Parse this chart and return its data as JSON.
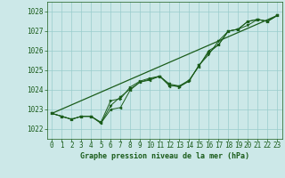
{
  "title": "Graphe pression niveau de la mer (hPa)",
  "background_color": "#cce8e8",
  "grid_color": "#99cccc",
  "line_color": "#1a5c1a",
  "marker_color": "#1a5c1a",
  "xlim": [
    -0.5,
    23.5
  ],
  "ylim": [
    1021.5,
    1028.5
  ],
  "yticks": [
    1022,
    1023,
    1024,
    1025,
    1026,
    1027,
    1028
  ],
  "xticks": [
    0,
    1,
    2,
    3,
    4,
    5,
    6,
    7,
    8,
    9,
    10,
    11,
    12,
    13,
    14,
    15,
    16,
    17,
    18,
    19,
    20,
    21,
    22,
    23
  ],
  "series1_x": [
    0,
    1,
    2,
    3,
    4,
    5,
    6,
    7,
    8,
    9,
    10,
    11,
    12,
    13,
    14,
    15,
    16,
    17,
    18,
    19,
    20,
    21,
    22,
    23
  ],
  "series1_y": [
    1022.8,
    1022.65,
    1022.5,
    1022.65,
    1022.65,
    1022.3,
    1023.2,
    1023.65,
    1024.05,
    1024.4,
    1024.55,
    1024.7,
    1024.3,
    1024.2,
    1024.45,
    1025.25,
    1025.8,
    1026.5,
    1027.0,
    1027.1,
    1027.3,
    1027.6,
    1027.5,
    1027.8
  ],
  "series2_x": [
    0,
    1,
    2,
    3,
    4,
    5,
    6,
    7,
    8,
    9,
    10,
    11,
    12,
    13,
    14,
    15,
    16,
    17,
    18,
    19,
    20,
    21,
    22,
    23
  ],
  "series2_y": [
    1022.8,
    1022.65,
    1022.5,
    1022.65,
    1022.65,
    1022.35,
    1023.45,
    1023.55,
    1024.15,
    1024.45,
    1024.6,
    1024.7,
    1024.25,
    1024.15,
    1024.45,
    1025.25,
    1025.9,
    1026.3,
    1027.0,
    1027.1,
    1027.5,
    1027.6,
    1027.5,
    1027.8
  ],
  "series3_x": [
    0,
    1,
    2,
    3,
    4,
    5,
    6,
    7,
    8,
    9,
    10,
    11,
    12,
    13,
    14,
    15,
    16,
    17,
    18,
    19,
    20,
    21,
    22,
    23
  ],
  "series3_y": [
    1022.8,
    1022.65,
    1022.5,
    1022.65,
    1022.65,
    1022.3,
    1023.0,
    1023.1,
    1024.0,
    1024.4,
    1024.5,
    1024.7,
    1024.2,
    1024.2,
    1024.5,
    1025.2,
    1026.0,
    1026.3,
    1027.0,
    1027.1,
    1027.5,
    1027.6,
    1027.5,
    1027.8
  ],
  "trend_x": [
    0,
    23
  ],
  "trend_y": [
    1022.8,
    1027.8
  ],
  "xlabel_fontsize": 5.5,
  "ylabel_fontsize": 5.5,
  "title_fontsize": 6.0
}
